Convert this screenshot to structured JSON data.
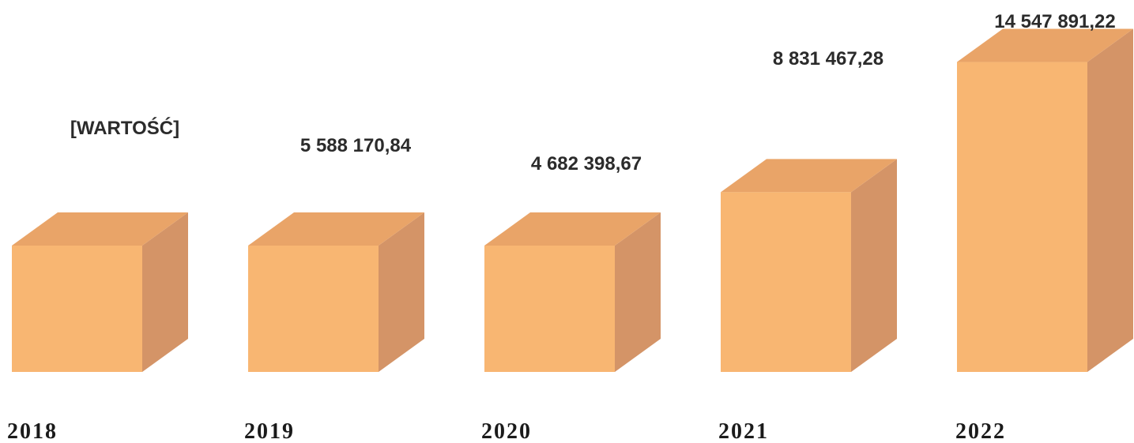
{
  "chart_data": {
    "type": "bar",
    "title": "",
    "xlabel": "",
    "ylabel": "",
    "categories": [
      "2018",
      "2019",
      "2020",
      "2021",
      "2022"
    ],
    "values": [
      5700000,
      5588170.84,
      4682398.67,
      8831467.28,
      14547891.22
    ],
    "data_labels": [
      "[WARTOŚĆ]",
      "5 588 170,84",
      "4 682 398,67",
      "8 831 467,28",
      "14 547 891,22"
    ],
    "ylim": [
      0,
      15000000
    ],
    "grid": false,
    "legend": "none",
    "style": "3d-box",
    "colors": {
      "front": "#F8B672",
      "top": "#E9A468",
      "side": "#D49467"
    }
  }
}
